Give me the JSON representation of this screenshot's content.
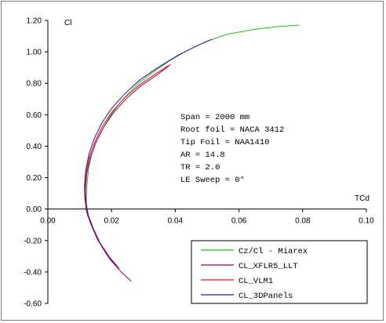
{
  "chart_data": {
    "type": "line",
    "xlabel": "TCd",
    "ylabel": "Cl",
    "xlim": [
      0,
      0.1
    ],
    "ylim": [
      -0.6,
      1.2
    ],
    "xticks": [
      "0.00",
      "0.02",
      "0.04",
      "0.06",
      "0.08",
      "0.10"
    ],
    "yticks": [
      "1.20",
      "1.00",
      "0.80",
      "0.60",
      "0.40",
      "0.20",
      "0.00",
      "-0.20",
      "-0.40",
      "-0.60"
    ],
    "grid": false,
    "legend_position": "bottom-right",
    "info_lines": [
      "Span = 2000 mm",
      "Root foil = NACA 3412",
      "Tip Foil = NAA1410",
      "AR = 14.8",
      "TR = 2.0",
      "LE Sweep = 0°"
    ],
    "series": [
      {
        "name": "Cz/Cl - Miarex",
        "color": "#22c322",
        "x": [
          0.0125,
          0.0122,
          0.0121,
          0.0123,
          0.0128,
          0.0138,
          0.0152,
          0.0172,
          0.0195,
          0.022,
          0.025,
          0.0285,
          0.033,
          0.038,
          0.043,
          0.049,
          0.056,
          0.064,
          0.072,
          0.079
        ],
        "y": [
          -0.05,
          0.0,
          0.08,
          0.16,
          0.26,
          0.35,
          0.43,
          0.51,
          0.59,
          0.66,
          0.73,
          0.8,
          0.87,
          0.94,
          1.0,
          1.06,
          1.11,
          1.14,
          1.16,
          1.17
        ]
      },
      {
        "name": "CL_XFLR5_LLT",
        "color": "#990066",
        "x": [
          0.0262,
          0.023,
          0.0195,
          0.0165,
          0.0142,
          0.0127,
          0.012,
          0.0118,
          0.0122,
          0.0132,
          0.015,
          0.0175,
          0.0205,
          0.0245,
          0.029,
          0.034,
          0.038
        ],
        "y": [
          -0.46,
          -0.4,
          -0.32,
          -0.22,
          -0.12,
          -0.04,
          0.04,
          0.12,
          0.22,
          0.32,
          0.42,
          0.52,
          0.61,
          0.7,
          0.78,
          0.85,
          0.91
        ]
      },
      {
        "name": "CL_VLM1",
        "color": "#ee1111",
        "x": [
          0.0225,
          0.0195,
          0.0162,
          0.0138,
          0.0124,
          0.0118,
          0.0116,
          0.012,
          0.013,
          0.0148,
          0.0172,
          0.0202,
          0.0242,
          0.0288,
          0.0338,
          0.0385
        ],
        "y": [
          -0.38,
          -0.31,
          -0.21,
          -0.11,
          -0.03,
          0.05,
          0.13,
          0.23,
          0.33,
          0.43,
          0.53,
          0.62,
          0.71,
          0.79,
          0.86,
          0.92
        ]
      },
      {
        "name": "CL_3DPanels",
        "color": "#3311aa",
        "x": [
          0.0215,
          0.0185,
          0.0155,
          0.0134,
          0.0121,
          0.0116,
          0.0115,
          0.0119,
          0.0129,
          0.0146,
          0.017,
          0.02,
          0.024,
          0.0288,
          0.0345,
          0.041,
          0.047,
          0.0515
        ],
        "y": [
          -0.36,
          -0.29,
          -0.19,
          -0.09,
          -0.01,
          0.07,
          0.15,
          0.25,
          0.35,
          0.45,
          0.55,
          0.64,
          0.73,
          0.82,
          0.9,
          0.98,
          1.04,
          1.08
        ]
      }
    ]
  }
}
